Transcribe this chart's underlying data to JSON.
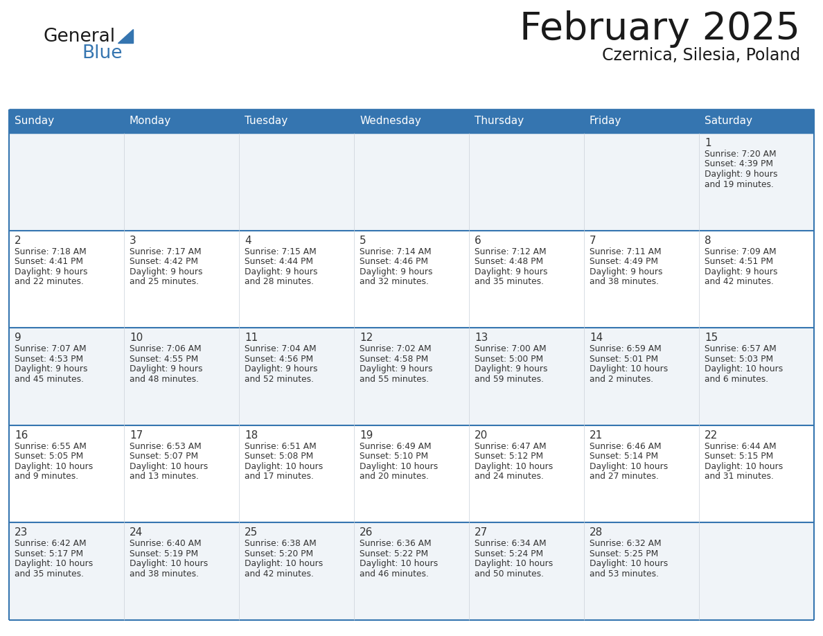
{
  "title": "February 2025",
  "subtitle": "Czernica, Silesia, Poland",
  "days_of_week": [
    "Sunday",
    "Monday",
    "Tuesday",
    "Wednesday",
    "Thursday",
    "Friday",
    "Saturday"
  ],
  "header_bg": "#3575b0",
  "header_text": "#ffffff",
  "row_bg_odd": "#f0f4f8",
  "row_bg_even": "#ffffff",
  "border_color": "#3575b0",
  "title_color": "#1a1a1a",
  "subtitle_color": "#1a1a1a",
  "day_num_color": "#333333",
  "cell_text_color": "#333333",
  "logo_general_color": "#1a1a1a",
  "logo_blue_color": "#3575b0",
  "logo_triangle_color": "#3575b0",
  "calendar_data": [
    [
      null,
      null,
      null,
      null,
      null,
      null,
      {
        "day": 1,
        "sunrise": "7:20 AM",
        "sunset": "4:39 PM",
        "daylight": "9 hours and 19 minutes."
      }
    ],
    [
      {
        "day": 2,
        "sunrise": "7:18 AM",
        "sunset": "4:41 PM",
        "daylight": "9 hours and 22 minutes."
      },
      {
        "day": 3,
        "sunrise": "7:17 AM",
        "sunset": "4:42 PM",
        "daylight": "9 hours and 25 minutes."
      },
      {
        "day": 4,
        "sunrise": "7:15 AM",
        "sunset": "4:44 PM",
        "daylight": "9 hours and 28 minutes."
      },
      {
        "day": 5,
        "sunrise": "7:14 AM",
        "sunset": "4:46 PM",
        "daylight": "9 hours and 32 minutes."
      },
      {
        "day": 6,
        "sunrise": "7:12 AM",
        "sunset": "4:48 PM",
        "daylight": "9 hours and 35 minutes."
      },
      {
        "day": 7,
        "sunrise": "7:11 AM",
        "sunset": "4:49 PM",
        "daylight": "9 hours and 38 minutes."
      },
      {
        "day": 8,
        "sunrise": "7:09 AM",
        "sunset": "4:51 PM",
        "daylight": "9 hours and 42 minutes."
      }
    ],
    [
      {
        "day": 9,
        "sunrise": "7:07 AM",
        "sunset": "4:53 PM",
        "daylight": "9 hours and 45 minutes."
      },
      {
        "day": 10,
        "sunrise": "7:06 AM",
        "sunset": "4:55 PM",
        "daylight": "9 hours and 48 minutes."
      },
      {
        "day": 11,
        "sunrise": "7:04 AM",
        "sunset": "4:56 PM",
        "daylight": "9 hours and 52 minutes."
      },
      {
        "day": 12,
        "sunrise": "7:02 AM",
        "sunset": "4:58 PM",
        "daylight": "9 hours and 55 minutes."
      },
      {
        "day": 13,
        "sunrise": "7:00 AM",
        "sunset": "5:00 PM",
        "daylight": "9 hours and 59 minutes."
      },
      {
        "day": 14,
        "sunrise": "6:59 AM",
        "sunset": "5:01 PM",
        "daylight": "10 hours and 2 minutes."
      },
      {
        "day": 15,
        "sunrise": "6:57 AM",
        "sunset": "5:03 PM",
        "daylight": "10 hours and 6 minutes."
      }
    ],
    [
      {
        "day": 16,
        "sunrise": "6:55 AM",
        "sunset": "5:05 PM",
        "daylight": "10 hours and 9 minutes."
      },
      {
        "day": 17,
        "sunrise": "6:53 AM",
        "sunset": "5:07 PM",
        "daylight": "10 hours and 13 minutes."
      },
      {
        "day": 18,
        "sunrise": "6:51 AM",
        "sunset": "5:08 PM",
        "daylight": "10 hours and 17 minutes."
      },
      {
        "day": 19,
        "sunrise": "6:49 AM",
        "sunset": "5:10 PM",
        "daylight": "10 hours and 20 minutes."
      },
      {
        "day": 20,
        "sunrise": "6:47 AM",
        "sunset": "5:12 PM",
        "daylight": "10 hours and 24 minutes."
      },
      {
        "day": 21,
        "sunrise": "6:46 AM",
        "sunset": "5:14 PM",
        "daylight": "10 hours and 27 minutes."
      },
      {
        "day": 22,
        "sunrise": "6:44 AM",
        "sunset": "5:15 PM",
        "daylight": "10 hours and 31 minutes."
      }
    ],
    [
      {
        "day": 23,
        "sunrise": "6:42 AM",
        "sunset": "5:17 PM",
        "daylight": "10 hours and 35 minutes."
      },
      {
        "day": 24,
        "sunrise": "6:40 AM",
        "sunset": "5:19 PM",
        "daylight": "10 hours and 38 minutes."
      },
      {
        "day": 25,
        "sunrise": "6:38 AM",
        "sunset": "5:20 PM",
        "daylight": "10 hours and 42 minutes."
      },
      {
        "day": 26,
        "sunrise": "6:36 AM",
        "sunset": "5:22 PM",
        "daylight": "10 hours and 46 minutes."
      },
      {
        "day": 27,
        "sunrise": "6:34 AM",
        "sunset": "5:24 PM",
        "daylight": "10 hours and 50 minutes."
      },
      {
        "day": 28,
        "sunrise": "6:32 AM",
        "sunset": "5:25 PM",
        "daylight": "10 hours and 53 minutes."
      },
      null
    ]
  ]
}
